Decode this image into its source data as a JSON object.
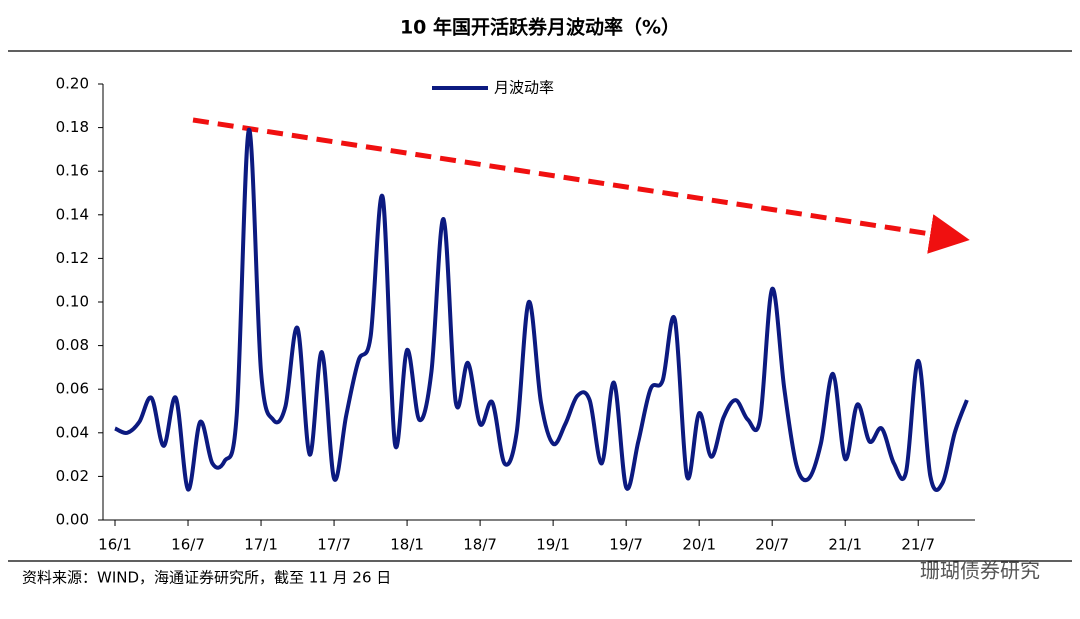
{
  "chart_data": {
    "type": "line",
    "title": "10 年国开活跃券月波动率（%）",
    "source": "资料来源：WIND，海通证券研究所，截至 11 月 26 日",
    "watermark": "珊瑚债券研究",
    "categories": [
      "16/1",
      null,
      null,
      null,
      null,
      null,
      "16/7",
      null,
      null,
      null,
      null,
      null,
      "17/1",
      null,
      null,
      null,
      null,
      null,
      "17/7",
      null,
      null,
      null,
      null,
      null,
      "18/1",
      null,
      null,
      null,
      null,
      null,
      "18/7",
      null,
      null,
      null,
      null,
      null,
      "19/1",
      null,
      null,
      null,
      null,
      null,
      "19/7",
      null,
      null,
      null,
      null,
      null,
      "20/1",
      null,
      null,
      null,
      null,
      null,
      "20/7",
      null,
      null,
      null,
      null,
      null,
      "21/1",
      null,
      null,
      null,
      null,
      null,
      "21/7",
      null,
      null,
      null,
      null
    ],
    "series": [
      {
        "name": "月波动率",
        "color": "#0c1a80",
        "values": [
          0.042,
          0.04,
          0.045,
          0.056,
          0.034,
          0.056,
          0.014,
          0.045,
          0.026,
          0.027,
          0.048,
          0.179,
          0.068,
          0.046,
          0.052,
          0.088,
          0.03,
          0.077,
          0.019,
          0.048,
          0.073,
          0.084,
          0.148,
          0.035,
          0.078,
          0.046,
          0.068,
          0.138,
          0.054,
          0.072,
          0.044,
          0.054,
          0.026,
          0.04,
          0.1,
          0.054,
          0.035,
          0.044,
          0.057,
          0.055,
          0.026,
          0.063,
          0.015,
          0.036,
          0.06,
          0.064,
          0.092,
          0.02,
          0.049,
          0.029,
          0.047,
          0.055,
          0.046,
          0.046,
          0.106,
          0.06,
          0.025,
          0.019,
          0.035,
          0.067,
          0.028,
          0.053,
          0.036,
          0.042,
          0.026,
          0.022,
          0.073,
          0.02,
          0.017,
          0.04,
          0.055
        ]
      }
    ],
    "ylim": [
      0,
      0.2
    ],
    "yticks": [
      {
        "value": 0,
        "label": "0.00"
      },
      {
        "value": 0.02,
        "label": "0.02"
      },
      {
        "value": 0.04,
        "label": "0.04"
      },
      {
        "value": 0.06,
        "label": "0.06"
      },
      {
        "value": 0.08,
        "label": "0.08"
      },
      {
        "value": 0.1,
        "label": "0.10"
      },
      {
        "value": 0.12,
        "label": "0.12"
      },
      {
        "value": 0.14,
        "label": "0.14"
      },
      {
        "value": 0.16,
        "label": "0.16"
      },
      {
        "value": 0.18,
        "label": "0.18"
      },
      {
        "value": 0.2,
        "label": "0.20"
      }
    ],
    "legend": "top"
  }
}
